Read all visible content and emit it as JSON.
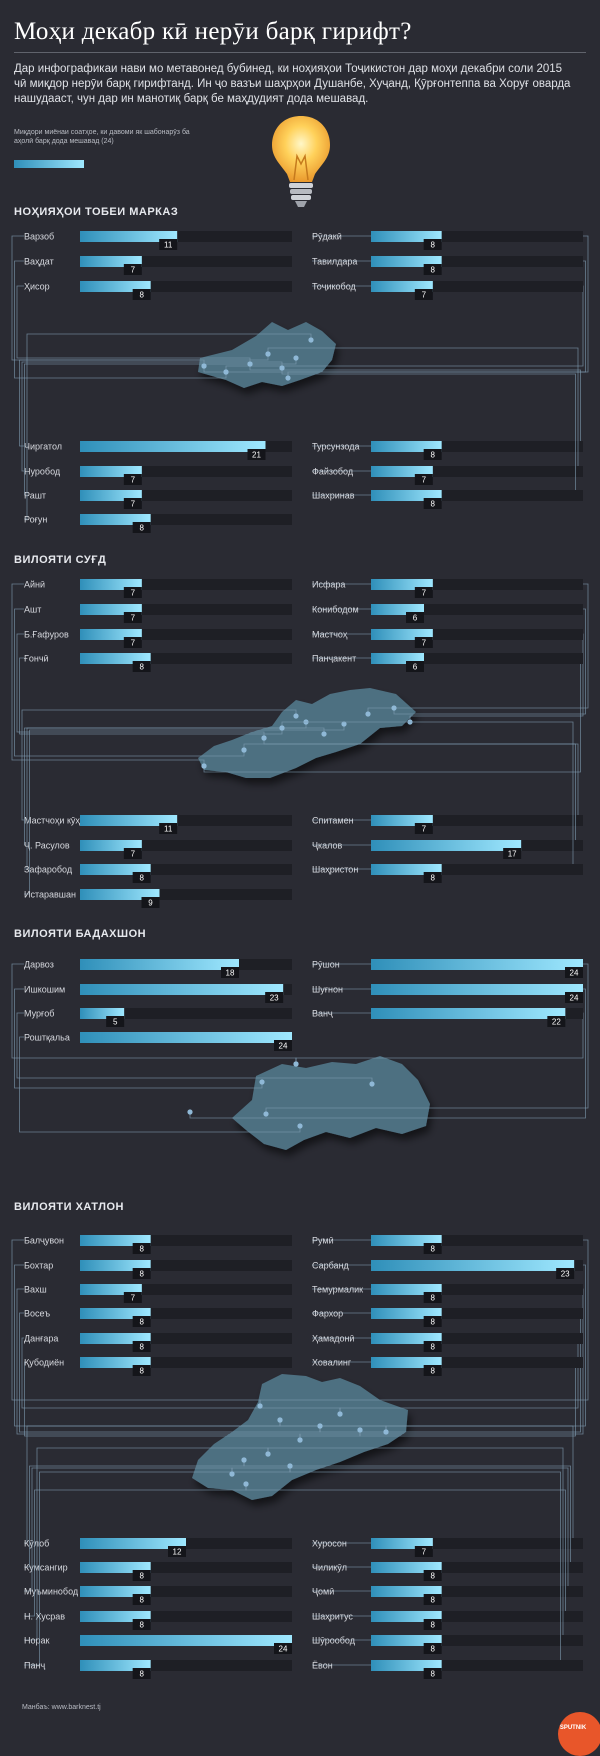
{
  "title": "Моҳи декабр кӣ нерӯи барқ гирифт?",
  "intro": "Дар инфографикаи нави мо метавонед бубинед, ки ноҳияҳои Тоҷикистон дар моҳи декабри соли 2015 чӣ миқдор нерӯи барқ гирифтанд. Ин ҷо вазъи шаҳрҳои Душанбе, Хуҷанд, Қӯрғонтеппа ва Хоруғ оварда нашудааст, чун дар ин манотиқ барқ бе маҳдудият дода мешавад.",
  "legend": {
    "text": "Миқдори миёнаи соатҳое, ки давоми як шабонарӯз ба аҳолӣ барқ дода мешавад (24)",
    "value": 24
  },
  "colors": {
    "background": "#2a2b33",
    "bar_track": "#1e1f25",
    "bar_start": "#2f8fb9",
    "bar_end": "#9fe8ff",
    "map": "#4e6f81",
    "connector": "#7f9cb2",
    "accent": "#e8562a"
  },
  "footer": {
    "source": "Манбаъ: www.barknest.tj",
    "brand": "SPUTNIK"
  },
  "chart_data": [
    {
      "type": "bar",
      "title": "НОҲИЯҲОИ ТОБЕИ МАРКАЗ",
      "max": 24,
      "left": [
        {
          "name": "Варзоб",
          "value": 11
        },
        {
          "name": "Ваҳдат",
          "value": 7
        },
        {
          "name": "Ҳисор",
          "value": 8
        },
        {
          "name": "Чиргатол",
          "value": 21
        },
        {
          "name": "Нуробод",
          "value": 7
        },
        {
          "name": "Рашт",
          "value": 7
        },
        {
          "name": "Роғун",
          "value": 8
        }
      ],
      "right": [
        {
          "name": "Рӯдакӣ",
          "value": 8
        },
        {
          "name": "Тавилдара",
          "value": 8
        },
        {
          "name": "Тоҷикобод",
          "value": 7
        },
        {
          "name": "Турсунзода",
          "value": 8
        },
        {
          "name": "Файзобод",
          "value": 7
        },
        {
          "name": "Шахринав",
          "value": 8
        }
      ]
    },
    {
      "type": "bar",
      "title": "ВИЛОЯТИ СУҒД",
      "max": 24,
      "left": [
        {
          "name": "Айнӣ",
          "value": 7
        },
        {
          "name": "Ашт",
          "value": 7
        },
        {
          "name": "Б.Ғафуров",
          "value": 7
        },
        {
          "name": "Ғончӣ",
          "value": 8
        },
        {
          "name": "Мастчоҳи кӯҳӣ",
          "value": 11
        },
        {
          "name": "Ҷ. Расулов",
          "value": 7
        },
        {
          "name": "Зафаробод",
          "value": 8
        },
        {
          "name": "Истаравшан",
          "value": 9
        }
      ],
      "right": [
        {
          "name": "Исфара",
          "value": 7
        },
        {
          "name": "Конибодом",
          "value": 6
        },
        {
          "name": "Мастчоҳ",
          "value": 7
        },
        {
          "name": "Панҷакент",
          "value": 6
        },
        {
          "name": "Спитамен",
          "value": 7
        },
        {
          "name": "Ҷкалов",
          "value": 17
        },
        {
          "name": "Шаҳристон",
          "value": 8
        }
      ]
    },
    {
      "type": "bar",
      "title": "ВИЛОЯТИ БАДАХШОН",
      "max": 24,
      "left": [
        {
          "name": "Дарвоз",
          "value": 18
        },
        {
          "name": "Ишкошим",
          "value": 23
        },
        {
          "name": "Мурғоб",
          "value": 5
        },
        {
          "name": "Роштқальа",
          "value": 24
        }
      ],
      "right": [
        {
          "name": "Рӯшон",
          "value": 24
        },
        {
          "name": "Шуғнон",
          "value": 24
        },
        {
          "name": "Ванҷ",
          "value": 22
        }
      ]
    },
    {
      "type": "bar",
      "title": "ВИЛОЯТИ ХАТЛОН",
      "max": 24,
      "left": [
        {
          "name": "Балҷувон",
          "value": 8
        },
        {
          "name": "Бохтар",
          "value": 8
        },
        {
          "name": "Вахш",
          "value": 7
        },
        {
          "name": "Восеъ",
          "value": 8
        },
        {
          "name": "Данғара",
          "value": 8
        },
        {
          "name": "Қубодиён",
          "value": 8
        },
        {
          "name": "Кӯлоб",
          "value": 12
        },
        {
          "name": "Кумсангир",
          "value": 8
        },
        {
          "name": "Муъминобод",
          "value": 8
        },
        {
          "name": "Н. Хусрав",
          "value": 8
        },
        {
          "name": "Норак",
          "value": 24
        },
        {
          "name": "Панҷ",
          "value": 8
        }
      ],
      "right": [
        {
          "name": "Румӣ",
          "value": 8
        },
        {
          "name": "Сарбанд",
          "value": 23
        },
        {
          "name": "Темурмалик",
          "value": 8
        },
        {
          "name": "Фархор",
          "value": 8
        },
        {
          "name": "Ҳамадонӣ",
          "value": 8
        },
        {
          "name": "Ховалинг",
          "value": 8
        },
        {
          "name": "Хуросон",
          "value": 7
        },
        {
          "name": "Чиликӯл",
          "value": 8
        },
        {
          "name": "Ҷомӣ",
          "value": 8
        },
        {
          "name": "Шаҳритус",
          "value": 8
        },
        {
          "name": "Шӯрообод",
          "value": 8
        },
        {
          "name": "Ёвон",
          "value": 8
        }
      ]
    }
  ]
}
